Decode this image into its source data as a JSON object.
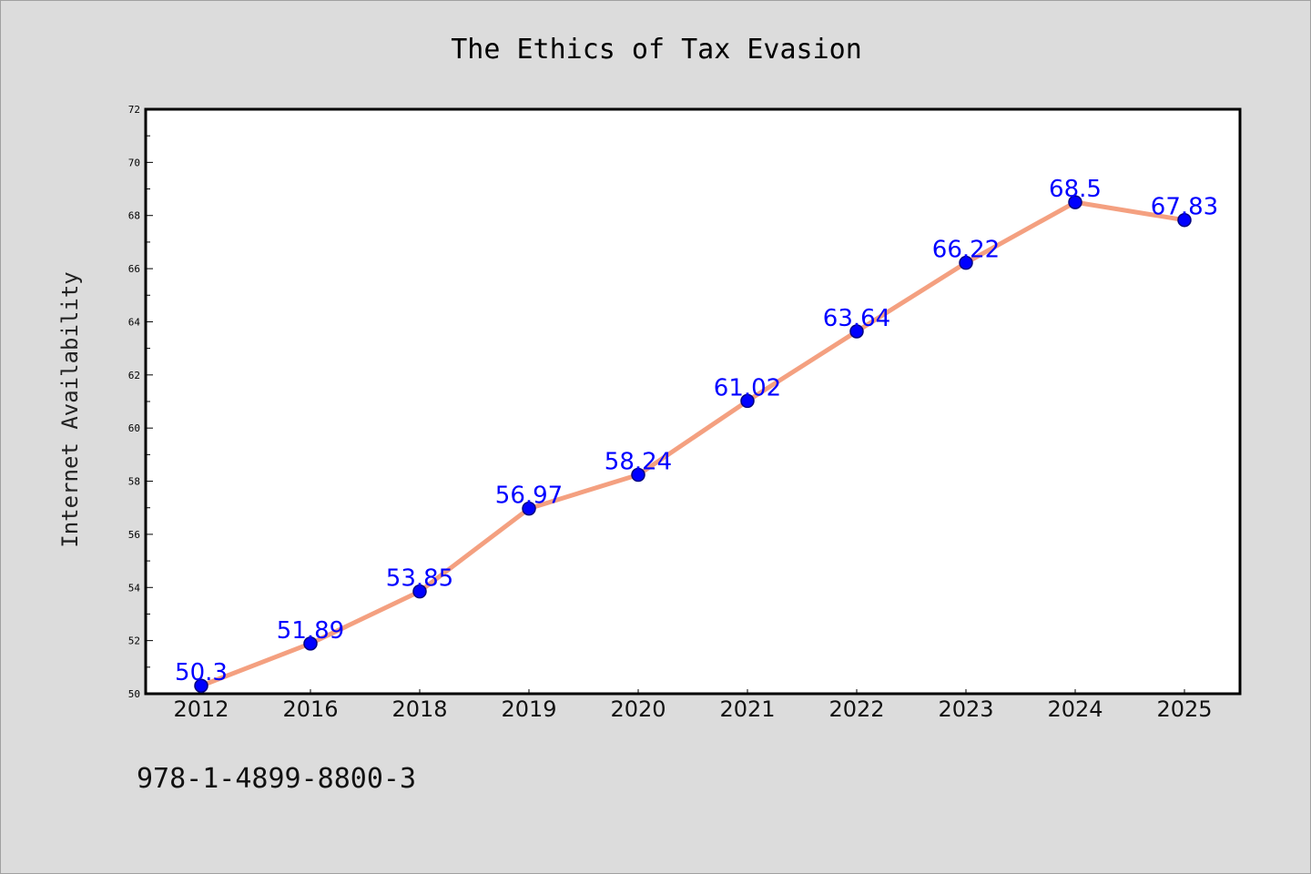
{
  "chart_data": {
    "type": "line",
    "title": "The Ethics of Tax Evasion",
    "xlabel": "",
    "ylabel": "Internet Availability",
    "categories": [
      "2012",
      "2016",
      "2018",
      "2019",
      "2020",
      "2021",
      "2022",
      "2023",
      "2024",
      "2025"
    ],
    "series": [
      {
        "values": [
          50.3,
          51.89,
          53.85,
          56.97,
          58.24,
          61.02,
          63.64,
          66.22,
          68.5,
          67.83
        ],
        "labels": [
          "50.3",
          "51.89",
          "53.85",
          "56.97",
          "58.24",
          "61.02",
          "63.64",
          "66.22",
          "68.5",
          "67.83"
        ]
      }
    ],
    "ylim": [
      50,
      72
    ],
    "yticks": [
      50,
      52,
      54,
      56,
      58,
      60,
      62,
      64,
      66,
      68,
      70,
      72
    ],
    "grid": false,
    "legend": "none",
    "colors": {
      "line": "#f4a080",
      "marker": "#0000ff",
      "marker_edge": "#000080",
      "data_label": "#0000ff",
      "background": "#dcdcdc",
      "plot_area": "#ffffff"
    }
  },
  "footnote": "978-1-4899-8800-3"
}
